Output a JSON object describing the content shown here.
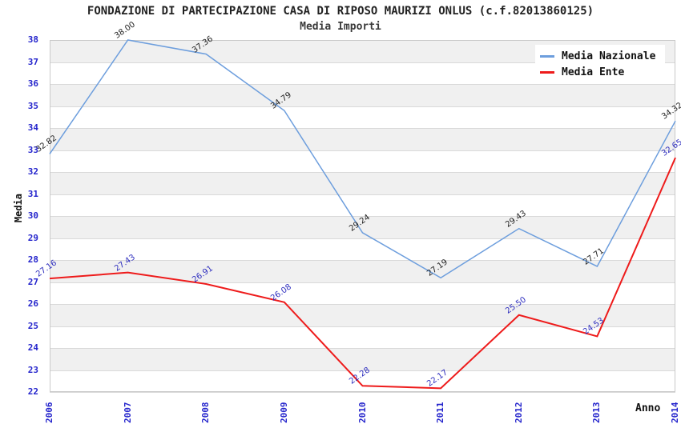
{
  "chart_data": {
    "type": "line",
    "title": "FONDAZIONE DI PARTECIPAZIONE CASA DI RIPOSO MAURIZI ONLUS (c.f.82013860125)",
    "subtitle": "Media Importi",
    "xlabel": "Anno",
    "ylabel": "Media",
    "x": [
      "2006",
      "2007",
      "2008",
      "2009",
      "2010",
      "2011",
      "2012",
      "2013",
      "2014"
    ],
    "yticks": [
      22,
      23,
      24,
      25,
      26,
      27,
      28,
      29,
      30,
      31,
      32,
      33,
      34,
      35,
      36,
      37,
      38
    ],
    "ylim": [
      22,
      38
    ],
    "grid": true,
    "legend_position": "top-right",
    "series": [
      {
        "name": "Media Nazionale",
        "color": "#6d9edd",
        "label_color": "#222222",
        "values": [
          32.82,
          38.0,
          37.36,
          34.79,
          29.24,
          27.19,
          29.43,
          27.71,
          34.32
        ],
        "labels": [
          "32.82",
          "38.00",
          "37.36",
          "34.79",
          "29.24",
          "27.19",
          "29.43",
          "27.71",
          "34.32"
        ]
      },
      {
        "name": "Media Ente",
        "color": "#ee1b1b",
        "label_color": "#2d2dbe",
        "values": [
          27.16,
          27.43,
          26.91,
          26.08,
          22.28,
          22.17,
          25.5,
          24.53,
          32.65
        ],
        "labels": [
          "27.16",
          "27.43",
          "26.91",
          "26.08",
          "22.28",
          "22.17",
          "25.50",
          "24.53",
          "32.65"
        ]
      }
    ],
    "colors": {
      "axis_text": "#2424cc",
      "band_gray": "#f0f0f0",
      "band_white": "#ffffff",
      "grid": "#d9d9d9",
      "border": "#c9c9c9"
    }
  }
}
